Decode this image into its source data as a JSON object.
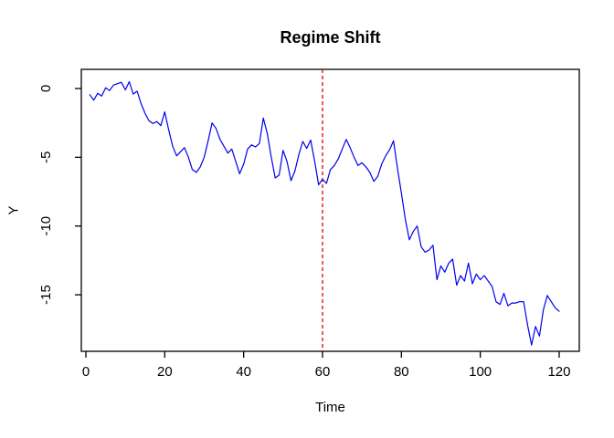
{
  "figure": {
    "background": "#ffffff",
    "axis_color": "#000000"
  },
  "chart_data": {
    "type": "line",
    "title": "Regime Shift",
    "xlabel": "Time",
    "ylabel": "Y",
    "x_ticks": [
      0,
      20,
      40,
      60,
      80,
      100,
      120
    ],
    "y_ticks": [
      0,
      -5,
      -10,
      -15
    ],
    "xlim": [
      -1.2,
      125
    ],
    "ylim": [
      -19.1,
      1.4
    ],
    "grid": false,
    "legend": "none",
    "series": [
      {
        "name": "Y",
        "color": "#0000ee",
        "x_start": 1,
        "x_step": 1,
        "values": [
          -0.45,
          -0.85,
          -0.35,
          -0.55,
          0.05,
          -0.15,
          0.25,
          0.35,
          0.45,
          -0.1,
          0.5,
          -0.4,
          -0.2,
          -1.1,
          -1.8,
          -2.35,
          -2.55,
          -2.4,
          -2.7,
          -1.7,
          -3.0,
          -4.2,
          -4.9,
          -4.6,
          -4.3,
          -5.0,
          -5.9,
          -6.1,
          -5.7,
          -5.0,
          -3.8,
          -2.5,
          -2.9,
          -3.7,
          -4.2,
          -4.7,
          -4.4,
          -5.3,
          -6.2,
          -5.5,
          -4.4,
          -4.1,
          -4.25,
          -4.0,
          -2.15,
          -3.3,
          -5.0,
          -6.5,
          -6.3,
          -4.5,
          -5.3,
          -6.7,
          -6.0,
          -4.8,
          -3.85,
          -4.35,
          -3.75,
          -5.3,
          -7.0,
          -6.6,
          -6.9,
          -5.9,
          -5.6,
          -5.1,
          -4.4,
          -3.7,
          -4.3,
          -5.0,
          -5.6,
          -5.4,
          -5.7,
          -6.1,
          -6.75,
          -6.4,
          -5.5,
          -4.9,
          -4.45,
          -3.8,
          -5.8,
          -7.6,
          -9.5,
          -11.0,
          -10.4,
          -10.0,
          -11.5,
          -11.9,
          -11.75,
          -11.4,
          -13.9,
          -12.9,
          -13.35,
          -12.7,
          -12.4,
          -14.3,
          -13.6,
          -14.0,
          -12.7,
          -14.2,
          -13.5,
          -13.9,
          -13.6,
          -14.0,
          -14.4,
          -15.5,
          -15.7,
          -14.9,
          -15.8,
          -15.6,
          -15.6,
          -15.5,
          -15.5,
          -17.2,
          -18.65,
          -17.3,
          -18.0,
          -16.1,
          -15.05,
          -15.5,
          -15.95,
          -16.2
        ]
      }
    ],
    "annotations": [
      {
        "type": "vline",
        "x": 60,
        "color": "#e00000",
        "style": "dashed"
      }
    ]
  }
}
